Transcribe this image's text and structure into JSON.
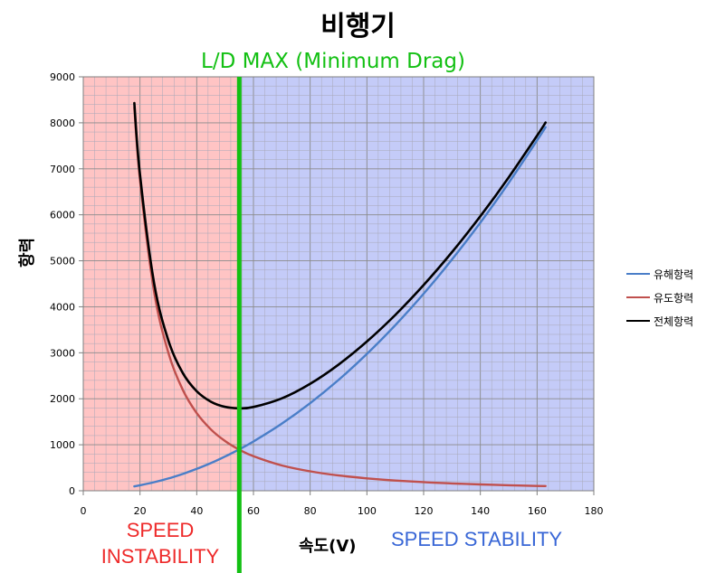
{
  "chart_data": {
    "type": "line",
    "title": "비행기",
    "subtitle": "L/D MAX (Minimum Drag)",
    "xlabel": "속도(V)",
    "ylabel": "항력",
    "xlim": [
      0,
      180
    ],
    "ylim": [
      0,
      9000
    ],
    "xticks": [
      0,
      20,
      40,
      60,
      80,
      100,
      120,
      140,
      160,
      180
    ],
    "yticks": [
      0,
      1000,
      2000,
      3000,
      4000,
      5000,
      6000,
      7000,
      8000,
      9000
    ],
    "grid": true,
    "legend_position": "right",
    "x": [
      18,
      20,
      25,
      30,
      35,
      40,
      45,
      50,
      55,
      60,
      70,
      80,
      90,
      100,
      110,
      120,
      130,
      140,
      150,
      160,
      163
    ],
    "series": [
      {
        "name": "유해항력",
        "color": "#4a7ec8",
        "values": [
          96,
          119,
          186,
          268,
          364,
          476,
          602,
          744,
          900,
          1071,
          1458,
          1904,
          2410,
          2975,
          3600,
          4284,
          5028,
          5831,
          6694,
          7616,
          7904
        ]
      },
      {
        "name": "유도항력",
        "color": "#c0504d",
        "values": [
          8334,
          6750,
          4320,
          3000,
          2204,
          1688,
          1333,
          1080,
          893,
          750,
          551,
          422,
          333,
          270,
          223,
          188,
          160,
          138,
          120,
          105,
          102
        ]
      },
      {
        "name": "전체항력",
        "color": "#000000",
        "values": [
          8430,
          6869,
          4506,
          3268,
          2568,
          2164,
          1935,
          1824,
          1793,
          1821,
          2009,
          2326,
          2743,
          3245,
          3823,
          4472,
          5188,
          5969,
          6814,
          7721,
          8006
        ]
      }
    ],
    "regions": [
      {
        "label": "SPEED INSTABILITY",
        "x_range": [
          0,
          55
        ],
        "color": "#ffc4c4",
        "text_color": "#ee2a2a"
      },
      {
        "label": "SPEED STABILITY",
        "x_range": [
          55,
          180
        ],
        "color": "#c4cbf8",
        "text_color": "#3866d6"
      }
    ],
    "marker_line": {
      "x": 55,
      "color": "#13c013"
    }
  }
}
